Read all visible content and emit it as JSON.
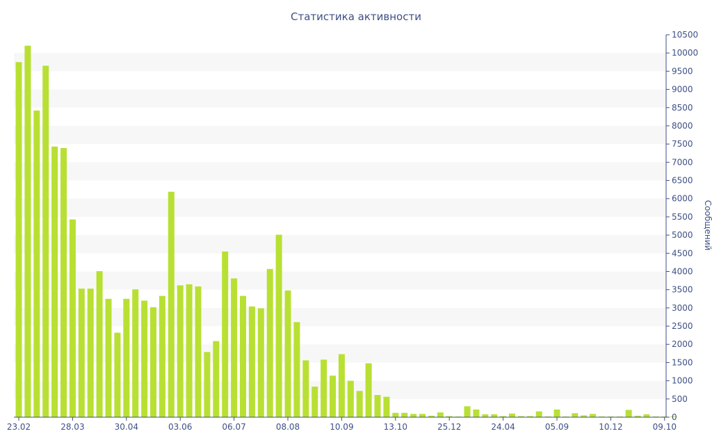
{
  "chart_data": {
    "type": "bar",
    "title": "Статистика активности",
    "xlabel": "",
    "ylabel": "Сообщений",
    "ylim": [
      0,
      10500
    ],
    "y_axis_side": "right",
    "grid": "horizontal-bands",
    "colors": {
      "bar": "#b8e033",
      "band": "#f7f7f7",
      "text": "#3e4f85"
    },
    "x_tick_labels": [
      {
        "index": 0,
        "label": "23.02"
      },
      {
        "index": 6,
        "label": "28.03"
      },
      {
        "index": 12,
        "label": "30.04"
      },
      {
        "index": 18,
        "label": "03.06"
      },
      {
        "index": 24,
        "label": "06.07"
      },
      {
        "index": 30,
        "label": "08.08"
      },
      {
        "index": 36,
        "label": "10.09"
      },
      {
        "index": 42,
        "label": "13.10"
      },
      {
        "index": 48,
        "label": "25.12"
      },
      {
        "index": 54,
        "label": "24.04"
      },
      {
        "index": 60,
        "label": "05.09"
      },
      {
        "index": 66,
        "label": "10.12"
      },
      {
        "index": 72,
        "label": "09.10"
      }
    ],
    "y_ticks": [
      0,
      500,
      1000,
      1500,
      2000,
      2500,
      3000,
      3500,
      4000,
      4500,
      5000,
      5500,
      6000,
      6500,
      7000,
      7500,
      8000,
      8500,
      9000,
      9500,
      10000,
      10500
    ],
    "values": [
      9750,
      10200,
      8420,
      9650,
      7430,
      7390,
      5430,
      3530,
      3530,
      4010,
      3250,
      2320,
      3250,
      3510,
      3200,
      3020,
      3330,
      6190,
      3620,
      3650,
      3590,
      1790,
      2090,
      4550,
      3810,
      3330,
      3040,
      2990,
      4070,
      5010,
      3480,
      2610,
      1560,
      840,
      1580,
      1140,
      1730,
      1000,
      720,
      1480,
      610,
      560,
      120,
      120,
      90,
      90,
      40,
      130,
      30,
      20,
      300,
      210,
      80,
      80,
      30,
      100,
      30,
      30,
      160,
      20,
      210,
      20,
      110,
      50,
      90,
      20,
      20,
      20,
      200,
      40,
      80,
      20,
      20,
      20
    ]
  }
}
